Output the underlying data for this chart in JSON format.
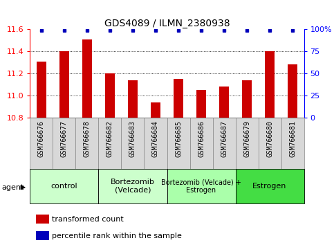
{
  "title": "GDS4089 / ILMN_2380938",
  "samples": [
    "GSM766676",
    "GSM766677",
    "GSM766678",
    "GSM766682",
    "GSM766683",
    "GSM766684",
    "GSM766685",
    "GSM766686",
    "GSM766687",
    "GSM766679",
    "GSM766680",
    "GSM766681"
  ],
  "bar_values": [
    11.31,
    11.4,
    11.51,
    11.2,
    11.14,
    10.94,
    11.15,
    11.05,
    11.08,
    11.14,
    11.4,
    11.28
  ],
  "bar_color": "#cc0000",
  "percentile_color": "#0000bb",
  "ylim_left": [
    10.8,
    11.6
  ],
  "ylim_right": [
    0,
    100
  ],
  "yticks_left": [
    10.8,
    11.0,
    11.2,
    11.4,
    11.6
  ],
  "yticks_right": [
    0,
    25,
    50,
    75,
    100
  ],
  "ytick_right_labels": [
    "0",
    "25",
    "50",
    "75",
    "100%"
  ],
  "groups": [
    {
      "label": "control",
      "start": 0,
      "end": 3,
      "color": "#ccffcc",
      "fontsize": 8
    },
    {
      "label": "Bortezomib\n(Velcade)",
      "start": 3,
      "end": 6,
      "color": "#ccffcc",
      "fontsize": 8
    },
    {
      "label": "Bortezomib (Velcade) +\nEstrogen",
      "start": 6,
      "end": 9,
      "color": "#aaffaa",
      "fontsize": 7
    },
    {
      "label": "Estrogen",
      "start": 9,
      "end": 12,
      "color": "#44dd44",
      "fontsize": 8
    }
  ],
  "agent_label": "agent",
  "legend_items": [
    {
      "color": "#cc0000",
      "label": "transformed count"
    },
    {
      "color": "#0000bb",
      "label": "percentile rank within the sample"
    }
  ],
  "tick_label_bg": "#d8d8d8",
  "tick_label_fontsize": 7,
  "bar_width": 0.45
}
